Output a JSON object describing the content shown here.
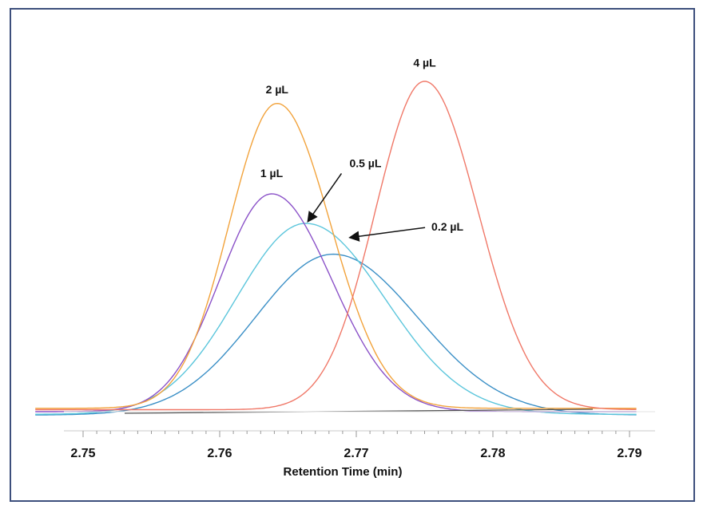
{
  "chart_data": {
    "type": "line",
    "title": "",
    "xlabel": "Retention Time (min)",
    "ylabel": "",
    "xlim": [
      2.75,
      2.79
    ],
    "ylim": [
      0,
      100
    ],
    "x_ticks": [
      "2.75",
      "2.76",
      "2.77",
      "2.78",
      "2.79"
    ],
    "grid": false,
    "series": [
      {
        "name": "0.2 µL",
        "color": "#3a8fc6",
        "center": 2.7683,
        "peak": 48,
        "sigma_left": 0.0057,
        "sigma_right": 0.0062,
        "baseline": -1.0
      },
      {
        "name": "0.5 µL",
        "color": "#5cc6dc",
        "center": 2.7663,
        "peak": 57,
        "sigma_left": 0.0051,
        "sigma_right": 0.0058,
        "baseline": -0.8
      },
      {
        "name": "1 µL",
        "color": "#8b52c8",
        "center": 2.7638,
        "peak": 65,
        "sigma_left": 0.0038,
        "sigma_right": 0.0044,
        "baseline": 0.0
      },
      {
        "name": "2 µL",
        "color": "#f2a33c",
        "center": 2.7642,
        "peak": 91,
        "sigma_left": 0.0035,
        "sigma_right": 0.0039,
        "baseline": 1.0
      },
      {
        "name": "4 µL",
        "color": "#f07868",
        "center": 2.775,
        "peak": 98,
        "sigma_left": 0.0036,
        "sigma_right": 0.0039,
        "baseline": 0.6
      }
    ],
    "annotations": [
      {
        "text": "4 µL",
        "x": 2.775,
        "y": 103
      },
      {
        "text": "2 µL",
        "x": 2.7642,
        "y": 95
      },
      {
        "text": "1 µL",
        "x": 2.7638,
        "y": 70
      },
      {
        "text": "0.5 µL",
        "x": 2.7695,
        "y": 73,
        "arrow_to": [
          2.7665,
          57
        ]
      },
      {
        "text": "0.2 µL",
        "x": 2.7755,
        "y": 54,
        "arrow_to": [
          2.7696,
          52
        ]
      }
    ]
  }
}
